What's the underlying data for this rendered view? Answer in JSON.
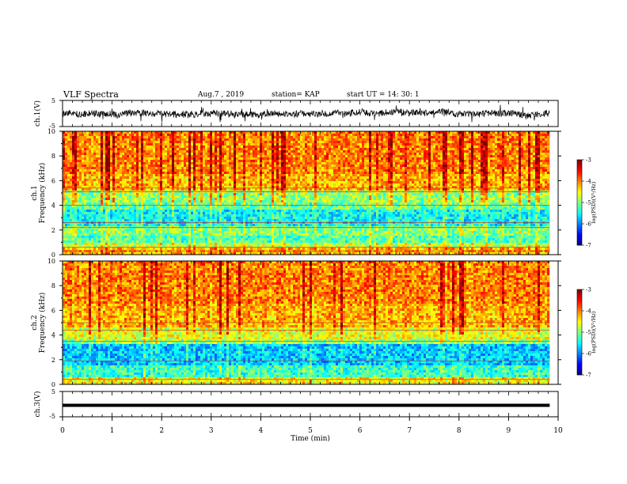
{
  "header": {
    "title": "VLF Spectra",
    "date": "Aug.7 , 2019",
    "station": "station= KAP",
    "start_ut": "start UT = 14: 30: 1"
  },
  "chart_data": [
    {
      "type": "line",
      "panel": "waveform-ch1",
      "ylabel": "ch.1(V)",
      "ylim": [
        -5,
        5
      ],
      "yticks": [
        "5",
        "-5"
      ],
      "x_end_min": 9.83,
      "series": [
        {
          "values_description_hidden": true,
          "level_range_v": [
            -1.8,
            1.5
          ]
        }
      ]
    },
    {
      "type": "heatmap",
      "panel": "spectrogram-ch1",
      "ylabel": "ch.1\nFrequency (kHz)",
      "ylim": [
        0,
        10
      ],
      "yticks": [
        "0",
        "2",
        "4",
        "6",
        "8",
        "10"
      ],
      "x_end_min": 9.83,
      "colorbar": {
        "label": "log(PSD)(V²/Hz)",
        "range": [
          -7,
          -3
        ],
        "ticks": [
          "-3",
          "-4",
          "-5",
          "-6",
          "-7"
        ]
      },
      "bands_log_psd": [
        {
          "f": [
            0,
            0.5
          ],
          "v": -4.2
        },
        {
          "f": [
            0.5,
            1.0
          ],
          "v": -4.7
        },
        {
          "f": [
            1.0,
            1.6
          ],
          "v": -5.2
        },
        {
          "f": [
            1.6,
            2.4
          ],
          "v": -5.0
        },
        {
          "f": [
            2.4,
            3.6
          ],
          "v": -5.5
        },
        {
          "f": [
            3.6,
            4.2
          ],
          "v": -5.1
        },
        {
          "f": [
            4.2,
            5.2
          ],
          "v": -4.9
        },
        {
          "f": [
            5.2,
            6.6
          ],
          "v": -4.2
        },
        {
          "f": [
            6.6,
            10.0
          ],
          "v": -4.0
        }
      ],
      "horizontal_lines_khz": [
        0.3,
        0.6,
        2.2,
        2.6,
        4.0,
        5.1,
        5.4
      ]
    },
    {
      "type": "heatmap",
      "panel": "spectrogram-ch2",
      "ylabel": "ch.2\nFrequency (kHz)",
      "ylim": [
        0,
        10
      ],
      "yticks": [
        "0",
        "2",
        "4",
        "6",
        "8",
        "10"
      ],
      "x_end_min": 9.83,
      "colorbar": {
        "label": "log(PSD)(V²/Hz)",
        "range": [
          -7,
          -3
        ],
        "ticks": [
          "-3",
          "-4",
          "-5",
          "-6",
          "-7"
        ]
      },
      "bands_log_psd": [
        {
          "f": [
            0,
            0.5
          ],
          "v": -4.5
        },
        {
          "f": [
            0.5,
            1.6
          ],
          "v": -5.3
        },
        {
          "f": [
            1.6,
            3.2
          ],
          "v": -5.7
        },
        {
          "f": [
            3.2,
            3.6
          ],
          "v": -4.9
        },
        {
          "f": [
            3.6,
            4.6
          ],
          "v": -4.6
        },
        {
          "f": [
            4.6,
            6.6
          ],
          "v": -4.2
        },
        {
          "f": [
            6.6,
            10.0
          ],
          "v": -4.0
        }
      ],
      "horizontal_lines_khz": [
        0.4,
        1.9,
        3.5,
        4.4,
        5.0
      ]
    },
    {
      "type": "line",
      "panel": "waveform-ch3",
      "ylabel": "ch.3(V)",
      "ylim": [
        -5,
        5
      ],
      "yticks": [
        "5",
        "-5"
      ],
      "x_end_min": 9.83,
      "series": [
        {
          "level_v": 0
        }
      ],
      "xlabel": "Time (min)",
      "xlim": [
        0,
        10
      ],
      "xticks": [
        "0",
        "1",
        "2",
        "3",
        "4",
        "5",
        "6",
        "7",
        "8",
        "9",
        "10"
      ]
    }
  ]
}
